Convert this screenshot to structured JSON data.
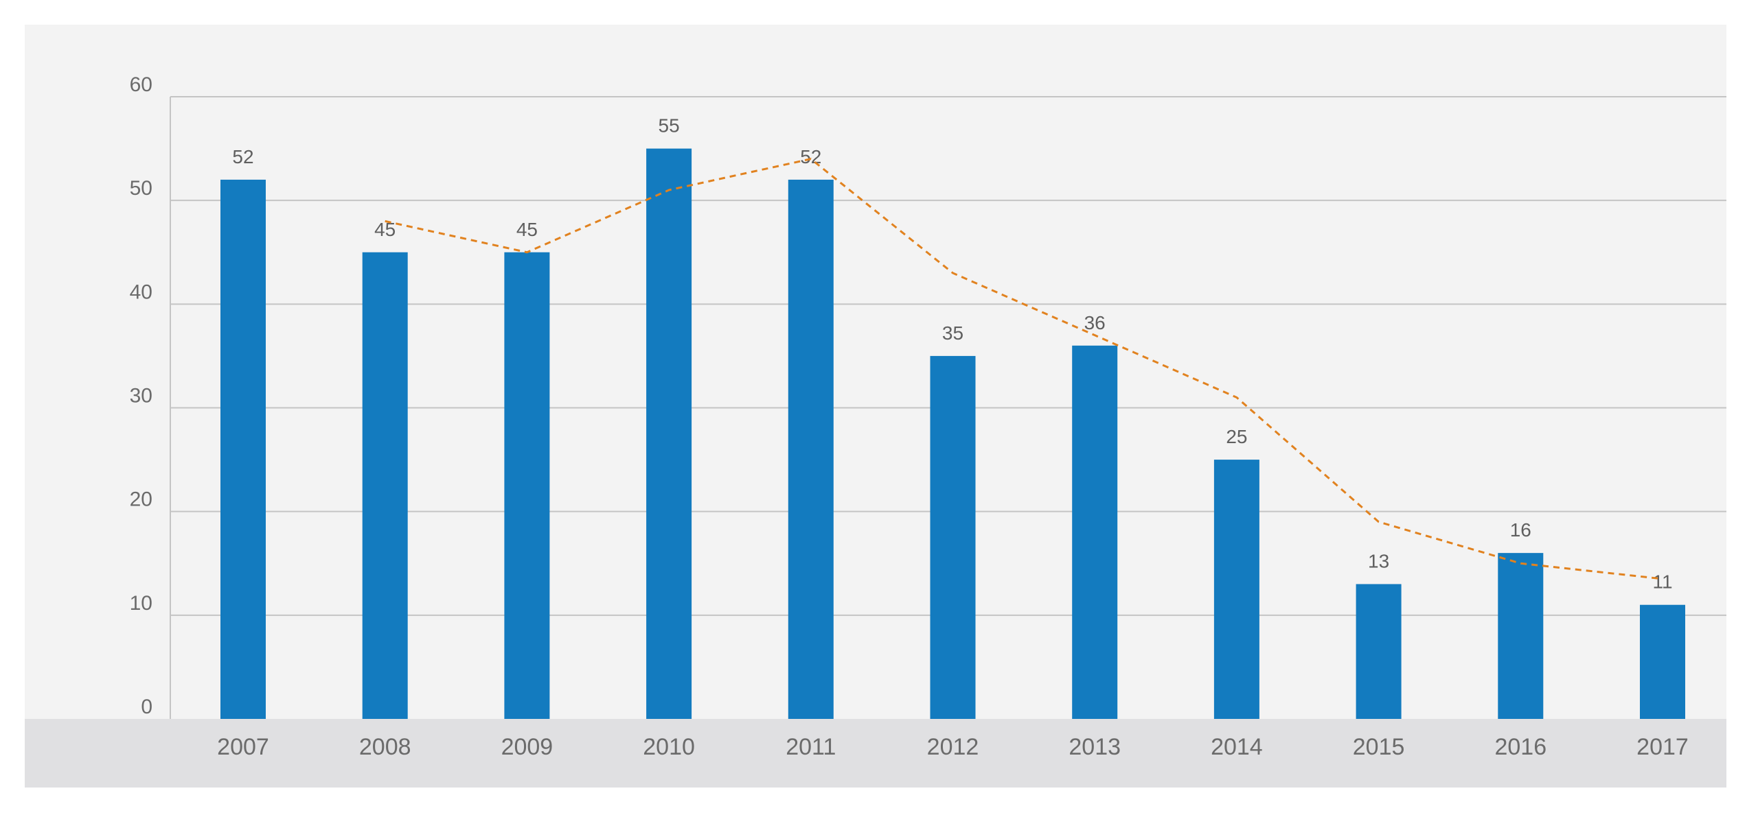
{
  "chart_data": {
    "type": "bar",
    "title": "",
    "xlabel": "",
    "ylabel": "",
    "categories": [
      "2007",
      "2008",
      "2009",
      "2010",
      "2011",
      "2012",
      "2013",
      "2014",
      "2015",
      "2016",
      "2017"
    ],
    "ylim": [
      0,
      60
    ],
    "yticks": [
      0,
      10,
      20,
      30,
      40,
      50,
      60
    ],
    "grid": true,
    "series": [
      {
        "kind": "bar",
        "values": [
          52,
          45,
          45,
          55,
          52,
          35,
          36,
          25,
          13,
          16,
          11
        ],
        "data_labels": [
          "52",
          "45",
          "45",
          "55",
          "52",
          "35",
          "36",
          "25",
          "13",
          "16",
          "11"
        ],
        "color": "#137bbf"
      },
      {
        "kind": "line",
        "style": "dashed",
        "x": [
          "2008",
          "2009",
          "2010",
          "2011",
          "2012",
          "2013",
          "2014",
          "2015",
          "2016",
          "2017"
        ],
        "values": [
          48,
          45,
          51,
          54,
          43,
          37,
          31,
          19,
          15,
          13.5
        ],
        "color": "#e1821f"
      }
    ]
  },
  "colors": {
    "plot_background": "#f3f3f3",
    "axis_band": "#e0e0e2",
    "gridline": "#c4c4c4",
    "text": "#6b6b6b"
  }
}
